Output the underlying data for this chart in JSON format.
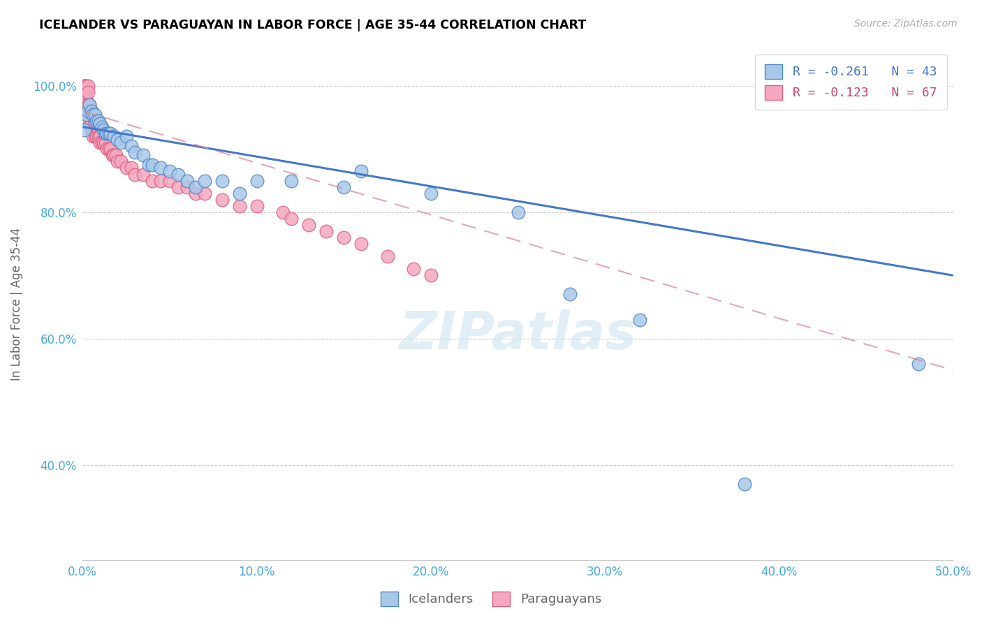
{
  "title": "ICELANDER VS PARAGUAYAN IN LABOR FORCE | AGE 35-44 CORRELATION CHART",
  "source": "Source: ZipAtlas.com",
  "ylabel": "In Labor Force | Age 35-44",
  "xlim": [
    0.0,
    0.5
  ],
  "ylim": [
    0.25,
    1.06
  ],
  "xtick_vals": [
    0.0,
    0.1,
    0.2,
    0.3,
    0.4,
    0.5
  ],
  "xtick_labels": [
    "0.0%",
    "10.0%",
    "20.0%",
    "30.0%",
    "40.0%",
    "50.0%"
  ],
  "ytick_vals": [
    0.4,
    0.6,
    0.8,
    1.0
  ],
  "ytick_labels": [
    "40.0%",
    "60.0%",
    "80.0%",
    "100.0%"
  ],
  "legend_entry_1": "R = -0.261   N = 43",
  "legend_entry_2": "R = -0.123   N = 67",
  "icelander_color": "#a8c8e8",
  "paraguayan_color": "#f4a8c0",
  "icelander_edge": "#5588cc",
  "paraguayan_edge": "#e06080",
  "trend_ice_color": "#4477cc",
  "trend_par_color": "#dd8899",
  "watermark": "ZIPatlas",
  "icelander_x": [
    0.001,
    0.002,
    0.003,
    0.004,
    0.005,
    0.006,
    0.007,
    0.008,
    0.009,
    0.01,
    0.011,
    0.012,
    0.013,
    0.014,
    0.015,
    0.016,
    0.018,
    0.02,
    0.022,
    0.025,
    0.028,
    0.03,
    0.035,
    0.038,
    0.04,
    0.045,
    0.05,
    0.055,
    0.06,
    0.065,
    0.07,
    0.08,
    0.09,
    0.1,
    0.12,
    0.15,
    0.16,
    0.2,
    0.25,
    0.28,
    0.32,
    0.38,
    0.48
  ],
  "icelander_y": [
    0.93,
    0.955,
    0.96,
    0.97,
    0.96,
    0.955,
    0.955,
    0.945,
    0.945,
    0.94,
    0.935,
    0.93,
    0.925,
    0.925,
    0.925,
    0.925,
    0.92,
    0.915,
    0.91,
    0.92,
    0.905,
    0.895,
    0.89,
    0.875,
    0.875,
    0.87,
    0.865,
    0.86,
    0.85,
    0.84,
    0.85,
    0.85,
    0.83,
    0.85,
    0.85,
    0.84,
    0.865,
    0.83,
    0.8,
    0.67,
    0.63,
    0.37,
    0.56
  ],
  "paraguayan_x": [
    0.001,
    0.001,
    0.001,
    0.001,
    0.001,
    0.002,
    0.002,
    0.002,
    0.002,
    0.003,
    0.003,
    0.003,
    0.003,
    0.004,
    0.004,
    0.004,
    0.004,
    0.005,
    0.005,
    0.005,
    0.005,
    0.006,
    0.006,
    0.006,
    0.007,
    0.007,
    0.007,
    0.008,
    0.008,
    0.009,
    0.009,
    0.01,
    0.01,
    0.011,
    0.012,
    0.013,
    0.014,
    0.015,
    0.016,
    0.017,
    0.018,
    0.019,
    0.02,
    0.022,
    0.025,
    0.028,
    0.03,
    0.035,
    0.04,
    0.045,
    0.05,
    0.055,
    0.06,
    0.065,
    0.07,
    0.08,
    0.09,
    0.1,
    0.115,
    0.12,
    0.13,
    0.14,
    0.15,
    0.16,
    0.175,
    0.19,
    0.2
  ],
  "paraguayan_y": [
    1.0,
    1.0,
    0.99,
    0.99,
    1.0,
    1.0,
    0.99,
    0.98,
    0.97,
    1.0,
    0.99,
    0.97,
    0.96,
    0.97,
    0.96,
    0.95,
    0.94,
    0.96,
    0.95,
    0.94,
    0.93,
    0.95,
    0.93,
    0.92,
    0.94,
    0.93,
    0.92,
    0.93,
    0.92,
    0.93,
    0.92,
    0.92,
    0.91,
    0.91,
    0.91,
    0.91,
    0.9,
    0.9,
    0.9,
    0.89,
    0.89,
    0.89,
    0.88,
    0.88,
    0.87,
    0.87,
    0.86,
    0.86,
    0.85,
    0.85,
    0.85,
    0.84,
    0.84,
    0.83,
    0.83,
    0.82,
    0.81,
    0.81,
    0.8,
    0.79,
    0.78,
    0.77,
    0.76,
    0.75,
    0.73,
    0.71,
    0.7
  ]
}
